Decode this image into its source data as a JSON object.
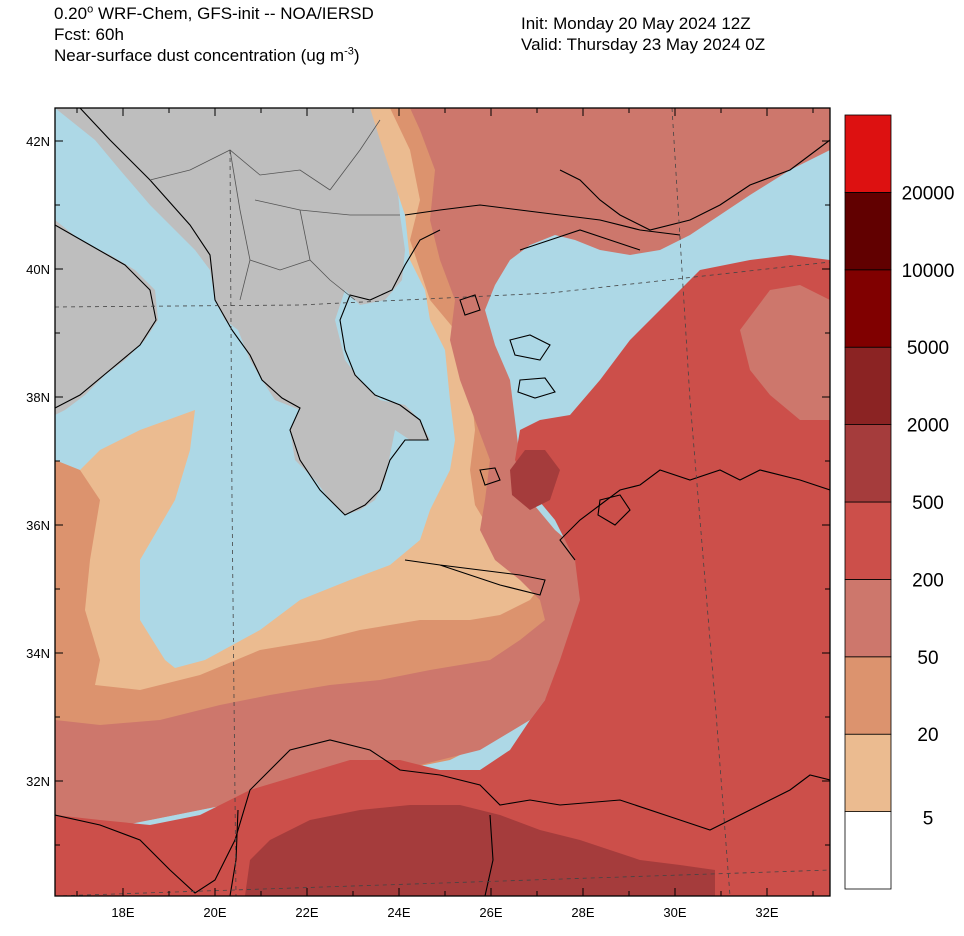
{
  "header": {
    "line1_value": "0.20",
    "line1_deg": "o",
    "line1_rest": " WRF-Chem, GFS-init -- NOA/IERSD",
    "line2": "Fcst: 60h",
    "line3_main": "Near-surface dust concentration (ug m",
    "line3_sup": "-3",
    "line3_end": ")",
    "init": "Init: Monday 20 May 2024  12Z",
    "valid": "Valid: Thursday 23 May 2024  0Z"
  },
  "map": {
    "lat_labels": [
      "42N",
      "40N",
      "38N",
      "36N",
      "34N",
      "32N"
    ],
    "lon_labels": [
      "18E",
      "20E",
      "22E",
      "24E",
      "26E",
      "28E",
      "30E",
      "32E"
    ],
    "colors": {
      "sea": "#add8e6",
      "land": "#bebebe",
      "c5": "#ebbb90",
      "c20": "#dc936e",
      "c50": "#cd776c",
      "c200": "#cc4f4a",
      "c500": "#a53c3c"
    }
  },
  "colorbar": {
    "labels": [
      "5",
      "20",
      "50",
      "200",
      "500",
      "2000",
      "5000",
      "10000",
      "20000"
    ],
    "colors": [
      "#ffffff",
      "#ebbb90",
      "#dc936e",
      "#cd776c",
      "#cc4f4a",
      "#a53c3c",
      "#8b2323",
      "#800000",
      "#610000",
      "#dd1111"
    ]
  }
}
